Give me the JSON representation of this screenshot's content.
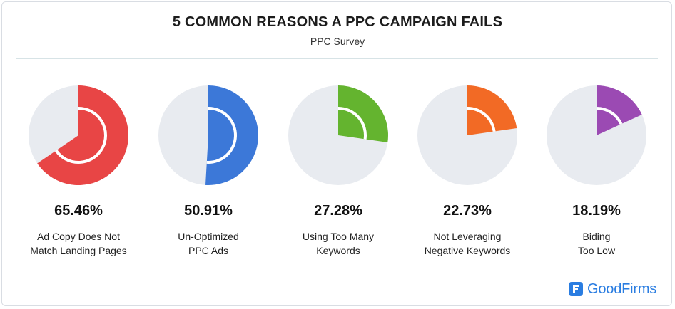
{
  "title": "5 COMMON REASONS A PPC CAMPAIGN FAILS",
  "subtitle": "PPC Survey",
  "brand": "GoodFirms",
  "colors": {
    "track": "#e8ebf0",
    "brand": "#2a7de1"
  },
  "chart_data": {
    "type": "pie",
    "title": "5 COMMON REASONS A PPC CAMPAIGN FAILS",
    "subtitle": "PPC Survey",
    "items": [
      {
        "value": 65.46,
        "display": "65.46%",
        "label_lines": [
          "Ad Copy Does Not",
          "Match Landing Pages"
        ],
        "color": "#e84545"
      },
      {
        "value": 50.91,
        "display": "50.91%",
        "label_lines": [
          "Un-Optimized",
          "PPC Ads"
        ],
        "color": "#3c78d8"
      },
      {
        "value": 27.28,
        "display": "27.28%",
        "label_lines": [
          "Using Too Many",
          "Keywords"
        ],
        "color": "#64b42f"
      },
      {
        "value": 22.73,
        "display": "22.73%",
        "label_lines": [
          "Not Leveraging",
          "Negative Keywords"
        ],
        "color": "#f26a25"
      },
      {
        "value": 18.19,
        "display": "18.19%",
        "label_lines": [
          "Biding",
          "Too Low"
        ],
        "color": "#9b4ab3"
      }
    ]
  }
}
